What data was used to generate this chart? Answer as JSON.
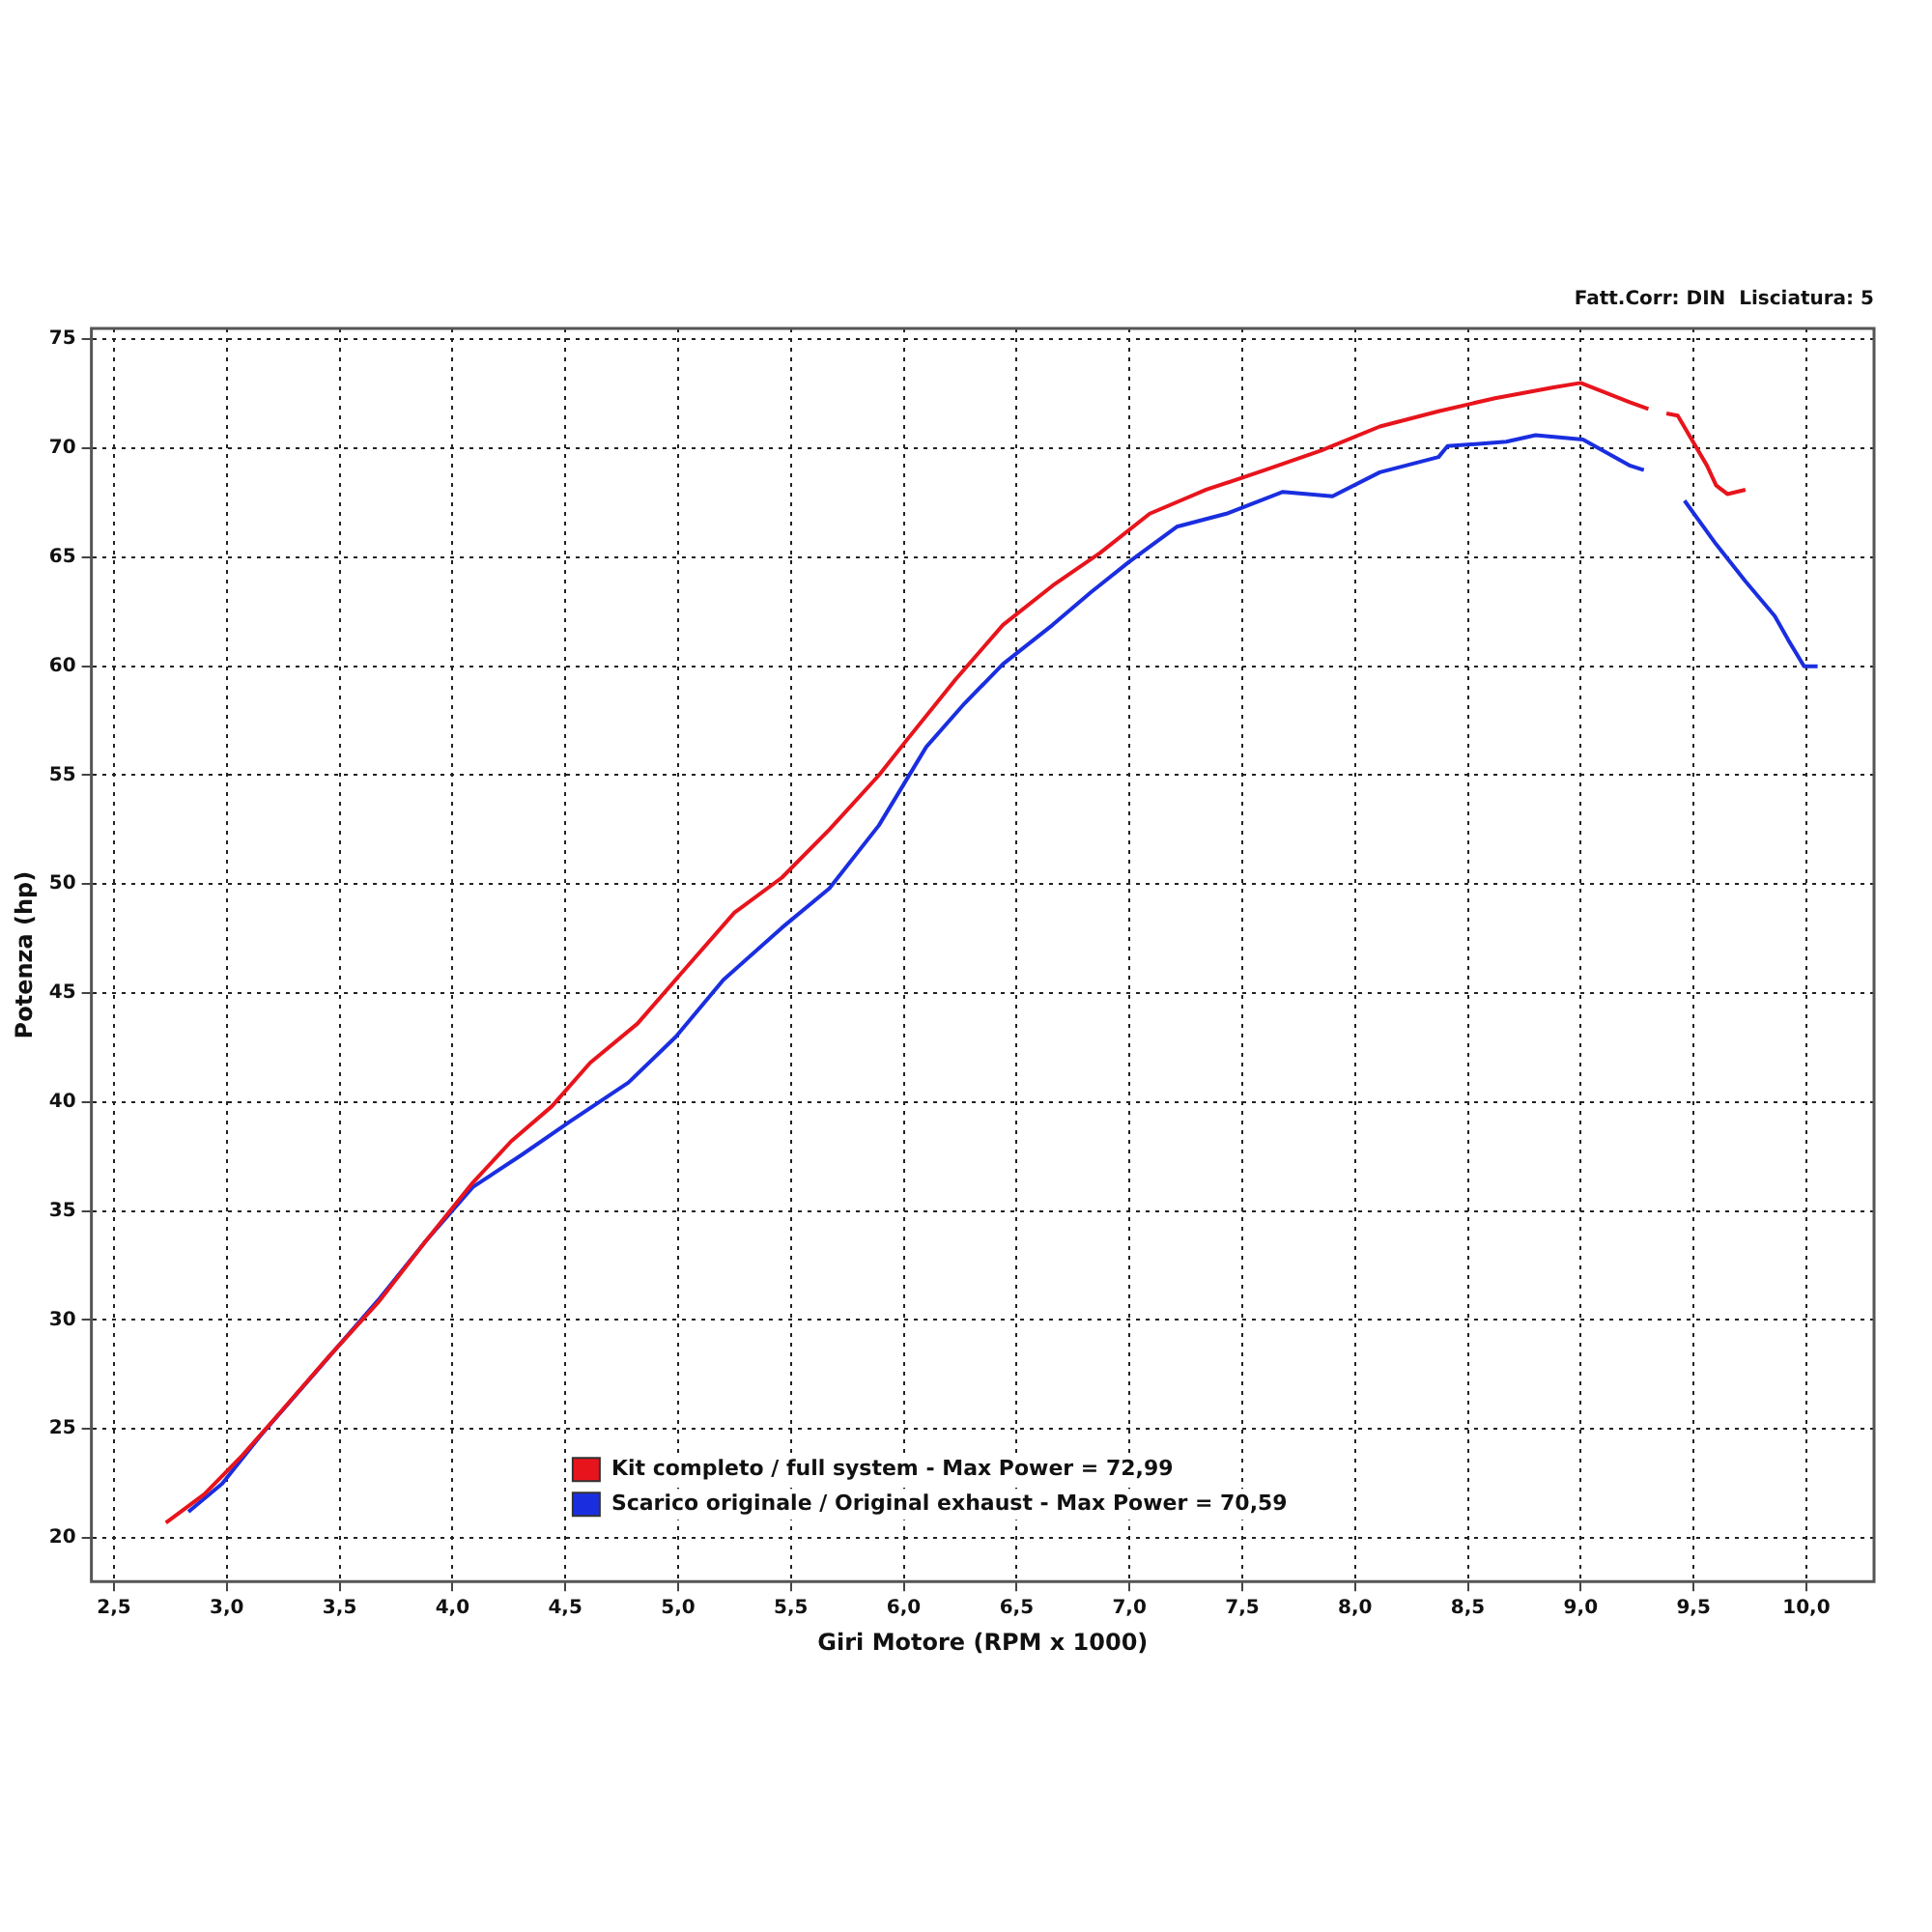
{
  "chart_data": {
    "type": "line",
    "xlabel": "Giri Motore (RPM x 1000)",
    "ylabel": "Potenza (hp)",
    "annotations": [
      "Fatt.Corr: DIN  Lisciatura: 5"
    ],
    "xlim": [
      2.4,
      10.3
    ],
    "ylim": [
      18,
      75.5
    ],
    "xticks": [
      {
        "value": 2.5,
        "label": "2,5"
      },
      {
        "value": 3,
        "label": "3,0"
      },
      {
        "value": 3.5,
        "label": "3,5"
      },
      {
        "value": 4,
        "label": "4,0"
      },
      {
        "value": 4.5,
        "label": "4,5"
      },
      {
        "value": 5,
        "label": "5,0"
      },
      {
        "value": 5.5,
        "label": "5,5"
      },
      {
        "value": 6,
        "label": "6,0"
      },
      {
        "value": 6.5,
        "label": "6,5"
      },
      {
        "value": 7,
        "label": "7,0"
      },
      {
        "value": 7.5,
        "label": "7,5"
      },
      {
        "value": 8,
        "label": "8,0"
      },
      {
        "value": 8.5,
        "label": "8,5"
      },
      {
        "value": 9,
        "label": "9,0"
      },
      {
        "value": 9.5,
        "label": "9,5"
      },
      {
        "value": 10,
        "label": "10,0"
      }
    ],
    "yticks": [
      20,
      25,
      30,
      35,
      40,
      45,
      50,
      55,
      60,
      65,
      70,
      75
    ],
    "grid": true,
    "legend": "bottom left",
    "marker": "none",
    "line_style": "solid",
    "series": [
      {
        "name": "Kit completo / full system - Max Power = 72,99",
        "color": "#e8141c",
        "x": [
          2.73,
          2.9,
          3.07,
          3.24,
          3.45,
          3.67,
          3.88,
          4.09,
          4.26,
          4.44,
          4.61,
          4.82,
          5.03,
          5.25,
          5.46,
          5.67,
          5.89,
          6.02,
          6.23,
          6.44,
          6.66,
          6.87,
          7.09,
          7.34,
          7.6,
          7.85,
          8.11,
          8.37,
          8.62,
          8.88,
          9.0,
          9.22,
          9.3,
          9.33,
          9.38,
          9.43,
          9.56,
          9.6,
          9.65,
          9.73
        ],
        "values": [
          20.7,
          22.0,
          23.8,
          25.8,
          28.3,
          30.8,
          33.6,
          36.3,
          38.2,
          39.8,
          41.8,
          43.6,
          46.1,
          48.7,
          50.3,
          52.5,
          55.0,
          56.7,
          59.4,
          61.9,
          63.7,
          65.2,
          67.0,
          68.1,
          69.0,
          69.9,
          71.0,
          71.7,
          72.3,
          72.8,
          73.0,
          72.1,
          71.8,
          null,
          71.6,
          71.5,
          69.2,
          68.3,
          67.9,
          68.1
        ]
      },
      {
        "name": "Scarico originale / Original exhaust - Max Power = 70,59",
        "color": "#1a2ee0",
        "x": [
          2.83,
          2.98,
          3.15,
          3.41,
          3.67,
          3.88,
          4.09,
          4.31,
          4.52,
          4.78,
          4.99,
          5.2,
          5.46,
          5.67,
          5.89,
          6.1,
          6.27,
          6.44,
          6.66,
          6.83,
          7.0,
          7.21,
          7.43,
          7.68,
          7.9,
          8.11,
          8.37,
          8.41,
          8.67,
          8.8,
          9.01,
          9.22,
          9.28,
          9.37,
          9.46,
          9.6,
          9.73,
          9.86,
          9.92,
          9.99,
          10.05
        ],
        "values": [
          21.2,
          22.5,
          24.7,
          27.8,
          30.9,
          33.6,
          36.1,
          37.6,
          39.1,
          40.9,
          43.0,
          45.6,
          48.0,
          49.8,
          52.7,
          56.3,
          58.3,
          60.1,
          61.9,
          63.4,
          64.8,
          66.4,
          67.0,
          68.0,
          67.8,
          68.9,
          69.6,
          70.1,
          70.3,
          70.6,
          70.4,
          69.2,
          69.0,
          null,
          67.6,
          65.6,
          63.9,
          62.3,
          61.2,
          60.0,
          60.0
        ]
      }
    ]
  }
}
